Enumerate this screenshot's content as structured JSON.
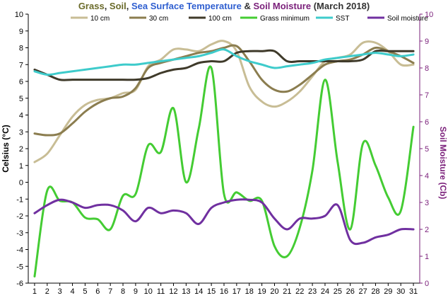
{
  "title": {
    "parts": [
      {
        "text": "Grass",
        "color": "#6b6b2a"
      },
      {
        "text": ", ",
        "color": "#333333"
      },
      {
        "text": "Soil",
        "color": "#6b6b2a"
      },
      {
        "text": ", ",
        "color": "#333333"
      },
      {
        "text": "Sea Surface Temperature",
        "color": "#2f5fd0"
      },
      {
        "text": " & ",
        "color": "#333333"
      },
      {
        "text": "Soil Moisture",
        "color": "#7a1f7a"
      },
      {
        "text": " (March 2018)",
        "color": "#333333"
      }
    ]
  },
  "chart_data": {
    "type": "line",
    "ylabel": "Celsius (°C)",
    "y2label": "Soil Moisture (Cb)",
    "ylim": [
      -6,
      10
    ],
    "y2lim": [
      0,
      10
    ],
    "x": [
      1,
      2,
      3,
      4,
      5,
      6,
      7,
      8,
      9,
      10,
      11,
      12,
      13,
      14,
      15,
      16,
      17,
      18,
      19,
      20,
      21,
      22,
      23,
      24,
      25,
      26,
      27,
      28,
      29,
      30,
      31
    ],
    "x_ticks": [
      "1",
      "2",
      "3",
      "4",
      "5",
      "6",
      "7",
      "8",
      "9",
      "10",
      "11",
      "12",
      "13",
      "14",
      "15",
      "16",
      "17",
      "18",
      "19",
      "20",
      "21",
      "22",
      "23",
      "24",
      "25",
      "26",
      "27",
      "28",
      "29",
      "30",
      "31"
    ],
    "y_ticks": [
      "-6",
      "-5",
      "-4",
      "-3",
      "-2",
      "-1",
      "0",
      "1",
      "2",
      "3",
      "4",
      "5",
      "6",
      "7",
      "8",
      "9",
      "10"
    ],
    "y2_ticks": [
      "0",
      "1",
      "2",
      "3",
      "4",
      "5",
      "6",
      "7",
      "8",
      "9",
      "10"
    ],
    "grid": false,
    "legend_position": "top",
    "series": [
      {
        "name": "10 cm",
        "axis": "left",
        "color": "#c8bd95",
        "values": [
          1.2,
          1.7,
          2.8,
          3.9,
          4.6,
          4.9,
          5.0,
          5.3,
          5.5,
          6.9,
          7.3,
          7.9,
          7.9,
          7.8,
          8.2,
          8.4,
          7.8,
          5.7,
          4.8,
          4.5,
          4.8,
          5.4,
          6.3,
          7.2,
          7.4,
          7.6,
          8.3,
          8.3,
          7.8,
          7.0,
          7.0
        ]
      },
      {
        "name": "30 cm",
        "axis": "left",
        "color": "#8b7d4f",
        "values": [
          2.9,
          2.8,
          2.9,
          3.5,
          4.2,
          4.7,
          5.0,
          5.1,
          5.6,
          6.8,
          7.1,
          7.3,
          7.5,
          7.7,
          7.8,
          8.0,
          8.1,
          7.2,
          6.1,
          5.5,
          5.4,
          5.8,
          6.4,
          7.0,
          7.2,
          7.3,
          7.6,
          8.0,
          7.8,
          7.5,
          7.1
        ]
      },
      {
        "name": "100 cm",
        "axis": "left",
        "color": "#3f3a2a",
        "values": [
          6.7,
          6.4,
          6.1,
          6.1,
          6.1,
          6.1,
          6.1,
          6.1,
          6.1,
          6.2,
          6.5,
          6.7,
          6.8,
          7.1,
          7.2,
          7.2,
          7.7,
          7.8,
          7.8,
          7.8,
          7.2,
          7.2,
          7.2,
          7.2,
          7.2,
          7.2,
          7.3,
          7.8,
          7.8,
          7.8,
          7.8
        ]
      },
      {
        "name": "Grass minimum",
        "axis": "left",
        "color": "#44cc33",
        "values": [
          -5.6,
          -0.5,
          -1.1,
          -1.2,
          -2.1,
          -2.2,
          -2.8,
          -0.8,
          -0.7,
          2.2,
          1.8,
          4.4,
          0.0,
          3.2,
          6.8,
          -0.7,
          -0.6,
          -1.1,
          -1.1,
          -3.8,
          -4.4,
          -2.7,
          0.7,
          6.1,
          1.2,
          -2.8,
          2.3,
          1.0,
          -0.9,
          -1.7,
          3.3
        ]
      },
      {
        "name": "SST",
        "axis": "left",
        "color": "#3ecbcb",
        "values": [
          6.6,
          6.4,
          6.5,
          6.6,
          6.7,
          6.8,
          6.9,
          7.0,
          7.0,
          7.1,
          7.2,
          7.3,
          7.4,
          7.5,
          7.7,
          7.9,
          7.5,
          7.2,
          7.0,
          6.8,
          6.9,
          7.0,
          7.1,
          7.3,
          7.4,
          7.5,
          7.6,
          7.7,
          7.6,
          7.5,
          7.6
        ]
      },
      {
        "name": "Soil moisture",
        "axis": "right",
        "color": "#7030a0",
        "values": [
          2.6,
          2.9,
          3.1,
          3.0,
          2.8,
          2.9,
          2.9,
          2.7,
          2.3,
          2.8,
          2.6,
          2.7,
          2.6,
          2.2,
          2.8,
          3.0,
          3.1,
          3.1,
          3.0,
          2.4,
          2.0,
          2.4,
          2.4,
          2.5,
          2.9,
          1.6,
          1.5,
          1.7,
          1.8,
          2.0,
          2.0
        ]
      }
    ]
  }
}
